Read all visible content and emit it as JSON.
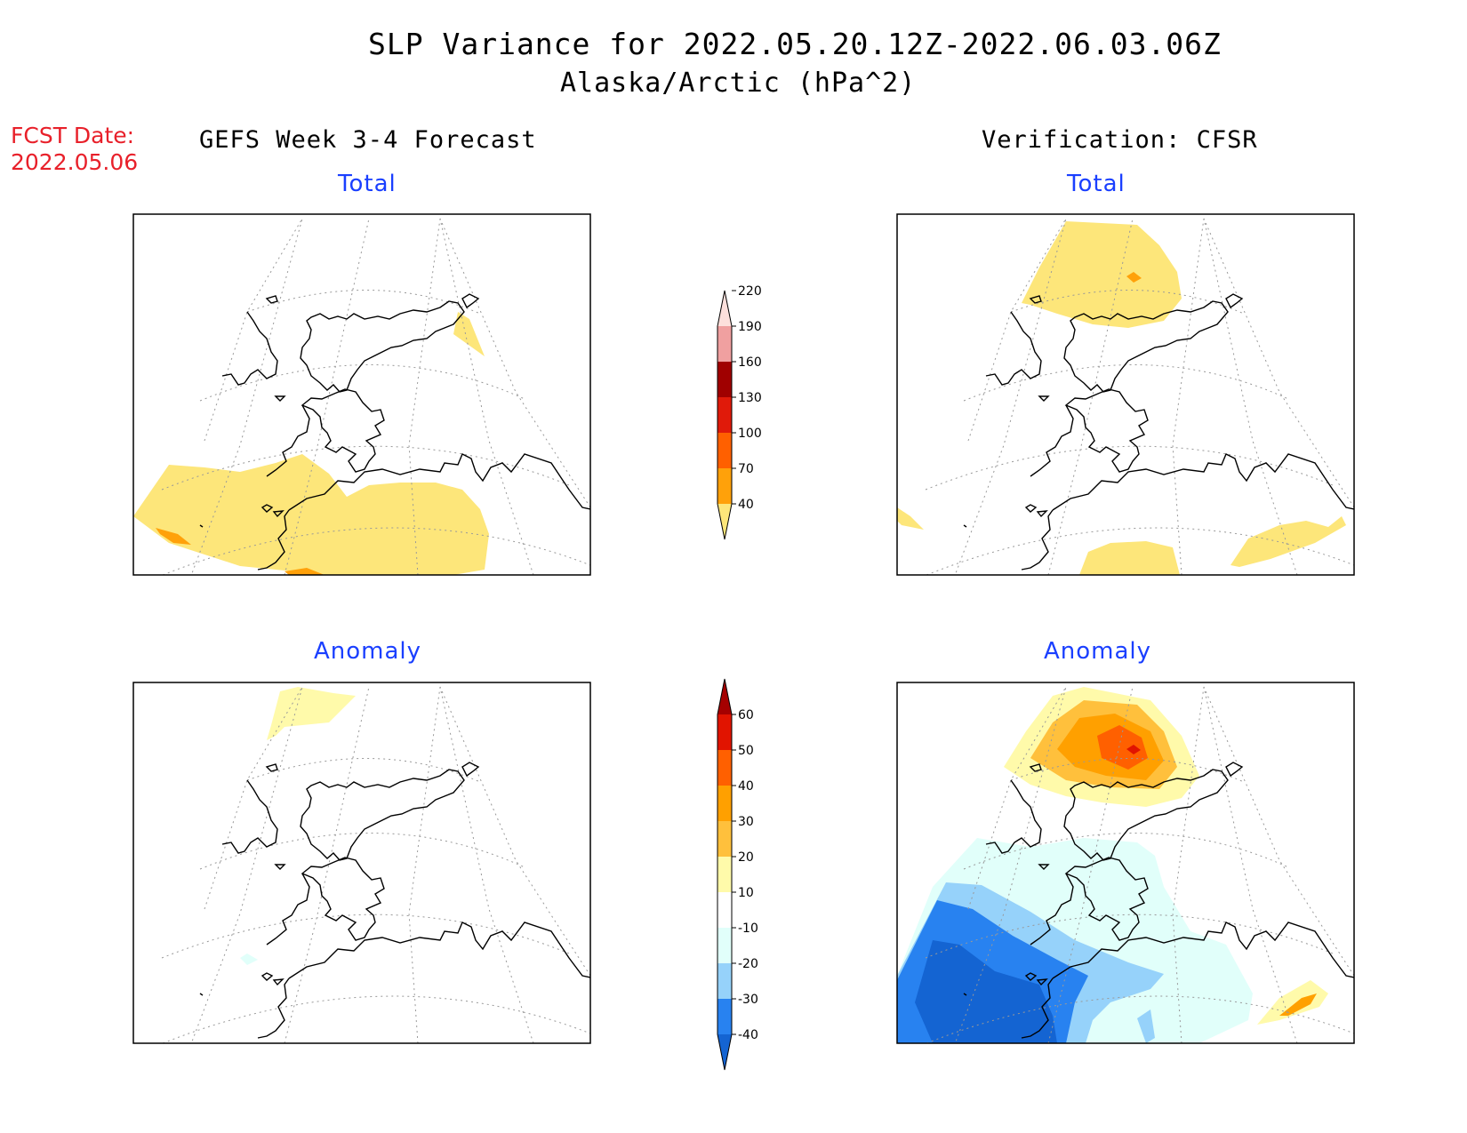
{
  "header": {
    "title": "SLP Variance for 2022.05.20.12Z-2022.06.03.06Z",
    "subtitle": "Alaska/Arctic (hPa^2)"
  },
  "fcst_date": {
    "label": "FCST Date:",
    "value": "2022.05.06"
  },
  "columns": {
    "left": "GEFS Week 3-4 Forecast",
    "right": "Verification: CFSR"
  },
  "panels": {
    "top_left": "Total",
    "top_right": "Total",
    "bottom_left": "Anomaly",
    "bottom_right": "Anomaly"
  },
  "colorbars": {
    "total": {
      "levels": [
        "40",
        "70",
        "100",
        "130",
        "160",
        "190",
        "220"
      ],
      "colors": [
        "#fde67a",
        "#ffa10a",
        "#ff6000",
        "#e01a0a",
        "#a00000",
        "#f0a0a0",
        "#fde0dc"
      ]
    },
    "anomaly": {
      "levels": [
        "-40",
        "-30",
        "-20",
        "-10",
        "10",
        "20",
        "30",
        "40",
        "50",
        "60"
      ],
      "colors": [
        "#1464d2",
        "#2882f0",
        "#96d2fa",
        "#e1fffa",
        "#ffffff",
        "#fffaaa",
        "#ffc03c",
        "#ffa000",
        "#ff6000",
        "#e11400",
        "#a50000"
      ]
    }
  }
}
